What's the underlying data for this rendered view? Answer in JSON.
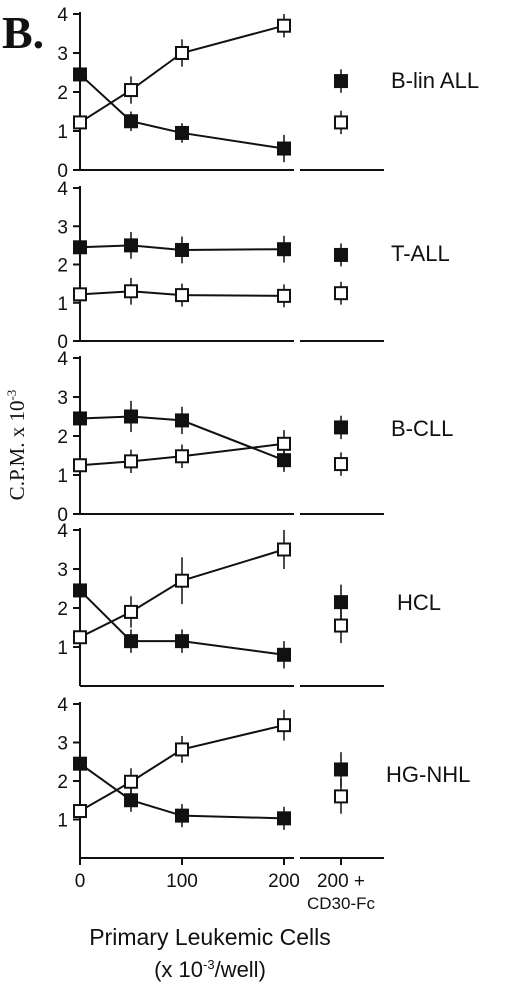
{
  "figure_label": "B.",
  "y_axis_label": "C.P.M. x 10",
  "y_axis_label_exponent": "-3",
  "x_axis_label_line1": "Primary Leukemic Cells",
  "x_axis_label_line2_prefix": "(x 10",
  "x_axis_label_line2_exponent": "-3",
  "x_axis_label_line2_suffix": "/well)",
  "x_tick_labels": [
    "0",
    "100",
    "200"
  ],
  "control_tick_label_line1": "200 +",
  "control_tick_label_line2": "CD30-Fc",
  "chart_data": [
    {
      "type": "line",
      "title": "B-lin ALL",
      "x": [
        0,
        50,
        100,
        200
      ],
      "ylim": [
        0,
        4
      ],
      "y_ticks": [
        "0",
        "1",
        "2",
        "3",
        "4"
      ],
      "series": [
        {
          "marker": "filled-square",
          "values": [
            2.45,
            1.25,
            0.95,
            0.55
          ],
          "errors": [
            0.25,
            0.25,
            0.25,
            0.35
          ],
          "control": {
            "value": 2.28,
            "error": 0.3
          }
        },
        {
          "marker": "open-square",
          "values": [
            1.22,
            2.05,
            3.0,
            3.7
          ],
          "errors": [
            0.35,
            0.35,
            0.35,
            0.3
          ],
          "control": {
            "value": 1.22,
            "error": 0.3
          }
        }
      ]
    },
    {
      "type": "line",
      "title": "T-ALL",
      "x": [
        0,
        50,
        100,
        200
      ],
      "ylim": [
        0,
        4
      ],
      "y_ticks": [
        "0",
        "1",
        "2",
        "3",
        "4"
      ],
      "series": [
        {
          "marker": "filled-square",
          "values": [
            2.45,
            2.5,
            2.38,
            2.4
          ],
          "errors": [
            0.35,
            0.35,
            0.35,
            0.35
          ],
          "control": {
            "value": 2.25,
            "error": 0.3
          }
        },
        {
          "marker": "open-square",
          "values": [
            1.22,
            1.3,
            1.2,
            1.18
          ],
          "errors": [
            0.3,
            0.35,
            0.3,
            0.3
          ],
          "control": {
            "value": 1.25,
            "error": 0.3
          }
        }
      ]
    },
    {
      "type": "line",
      "title": "B-CLL",
      "x": [
        0,
        50,
        100,
        200
      ],
      "ylim": [
        0,
        4
      ],
      "y_ticks": [
        "0",
        "1",
        "2",
        "3",
        "4"
      ],
      "series": [
        {
          "marker": "filled-square",
          "values": [
            2.45,
            2.5,
            2.4,
            1.38
          ],
          "errors": [
            0.35,
            0.4,
            0.35,
            0.3
          ],
          "control": {
            "value": 2.22,
            "error": 0.3
          }
        },
        {
          "marker": "open-square",
          "values": [
            1.25,
            1.35,
            1.48,
            1.8
          ],
          "errors": [
            0.3,
            0.3,
            0.3,
            0.35
          ],
          "control": {
            "value": 1.28,
            "error": 0.3
          }
        }
      ]
    },
    {
      "type": "line",
      "title": "HCL",
      "x": [
        0,
        50,
        100,
        200
      ],
      "ylim": [
        0,
        4
      ],
      "y_ticks": [
        "1",
        "2",
        "3",
        "4"
      ],
      "series": [
        {
          "marker": "filled-square",
          "values": [
            2.45,
            1.15,
            1.15,
            0.8
          ],
          "errors": [
            0.3,
            0.3,
            0.3,
            0.35
          ],
          "control": {
            "value": 2.15,
            "error": 0.45
          }
        },
        {
          "marker": "open-square",
          "values": [
            1.25,
            1.9,
            2.7,
            3.5
          ],
          "errors": [
            0.3,
            0.4,
            0.6,
            0.5
          ],
          "control": {
            "value": 1.55,
            "error": 0.45
          }
        }
      ]
    },
    {
      "type": "line",
      "title": "HG-NHL",
      "x": [
        0,
        50,
        100,
        200
      ],
      "ylim": [
        0,
        4
      ],
      "y_ticks": [
        "1",
        "2",
        "3",
        "4"
      ],
      "series": [
        {
          "marker": "filled-square",
          "values": [
            2.45,
            1.5,
            1.1,
            1.03
          ],
          "errors": [
            0.3,
            0.3,
            0.3,
            0.3
          ],
          "control": {
            "value": 2.3,
            "error": 0.45
          }
        },
        {
          "marker": "open-square",
          "values": [
            1.22,
            1.98,
            2.82,
            3.45
          ],
          "errors": [
            0.3,
            0.35,
            0.35,
            0.4
          ],
          "control": {
            "value": 1.6,
            "error": 0.45
          }
        }
      ]
    }
  ]
}
